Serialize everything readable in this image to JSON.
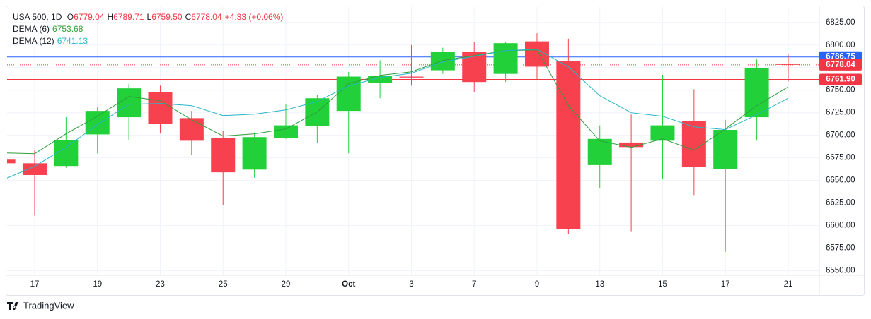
{
  "header": {
    "symbol": "USA 500, 1D",
    "items": [
      {
        "label": "O",
        "value": "6779.04"
      },
      {
        "label": "H",
        "value": "6789.71"
      },
      {
        "label": "L",
        "value": "6759.50"
      },
      {
        "label": "C",
        "value": "6778.04"
      }
    ],
    "change": "+4.33 (+0.06%)"
  },
  "brand": "TradingView",
  "chart_data": {
    "type": "candlestick",
    "categories": [
      null,
      "17",
      null,
      "19",
      null,
      "23",
      null,
      "25",
      null,
      "29",
      null,
      "Oct",
      null,
      "3",
      null,
      "7",
      null,
      "9",
      null,
      "13",
      null,
      "15",
      null,
      "17",
      null,
      "21"
    ],
    "open": [
      6673,
      6669,
      6666,
      6701,
      6720,
      6748,
      6719,
      6697,
      6662,
      6697,
      6710,
      6727,
      6758,
      6765,
      6772,
      6792,
      6768,
      6804,
      6782,
      6667,
      6692,
      6694,
      6716,
      6663,
      6720,
      6779.04
    ],
    "high": [
      6674,
      6684,
      6720,
      6731,
      6757,
      6755,
      6727,
      6705,
      6703,
      6735,
      6745,
      6770,
      6783,
      6800,
      6797,
      6803,
      6803,
      6813,
      6807,
      6711,
      6723,
      6767,
      6751,
      6717,
      6784,
      6789.71
    ],
    "low": [
      6668,
      6611,
      6664,
      6680,
      6695,
      6702,
      6678,
      6623,
      6653,
      6696,
      6692,
      6680,
      6741,
      6755,
      6768,
      6748,
      6759,
      6762,
      6591,
      6642,
      6593,
      6652,
      6633,
      6571,
      6694,
      6759.5
    ],
    "close": [
      6669,
      6656,
      6695,
      6727,
      6752,
      6713,
      6694,
      6659,
      6698,
      6711,
      6741,
      6765,
      6766,
      6764,
      6792,
      6759,
      6802,
      6776,
      6596,
      6696,
      6687,
      6711,
      6665,
      6706,
      6774,
      6778.04
    ],
    "up_color": "#22d13a",
    "down_color": "#f7414f",
    "series": [
      {
        "name": "DEMA (6)",
        "color": "#2e9e3a",
        "values": [
          6680.5,
          6679.7,
          6701.6,
          6721.1,
          6743,
          6738.3,
          6717.2,
          6699.2,
          6701.6,
          6707,
          6725.8,
          6757,
          6766.4,
          6770.3,
          6782.8,
          6788.3,
          6793.8,
          6794.5,
          6732.8,
          6693.8,
          6686.7,
          6696.1,
          6683.6,
          6707,
          6732.8,
          6753.68
        ]
      },
      {
        "name": "DEMA (12)",
        "color": "#26b6c6",
        "values": [
          6650.8,
          6665.6,
          6686.7,
          6711.7,
          6734.4,
          6735.2,
          6732.8,
          6721.9,
          6723.4,
          6728.1,
          6737.5,
          6754.7,
          6764.1,
          6768.8,
          6781.3,
          6787.5,
          6793.8,
          6795.3,
          6775.8,
          6743.8,
          6725,
          6721.1,
          6709.4,
          6706.3,
          6722.7,
          6741.13
        ]
      }
    ],
    "price_lines": [
      {
        "value": 6786.75,
        "color": "#2962ff",
        "style": "solid"
      },
      {
        "value": 6778.04,
        "color": "#f23645",
        "style": "dotted"
      },
      {
        "value": 6761.9,
        "label": "6761.90",
        "color": "#f23645",
        "style": "solid"
      }
    ],
    "ylim": [
      6545,
      6842
    ],
    "yticks": [
      {
        "value": 6550,
        "label": "6550.00"
      },
      {
        "value": 6575,
        "label": "6575.00"
      },
      {
        "value": 6600,
        "label": "6600.00"
      },
      {
        "value": 6625,
        "label": "6625.00"
      },
      {
        "value": 6650,
        "label": "6650.00"
      },
      {
        "value": 6675,
        "label": "6675.00"
      },
      {
        "value": 6700,
        "label": "6700.00"
      },
      {
        "value": 6725,
        "label": "6725.00"
      },
      {
        "value": 6750,
        "label": "6750.00"
      },
      {
        "value": 6775,
        "label": "6775.00"
      },
      {
        "value": 6800,
        "label": "6800.00"
      },
      {
        "value": 6825,
        "label": "6825.00"
      }
    ],
    "grid": true
  }
}
